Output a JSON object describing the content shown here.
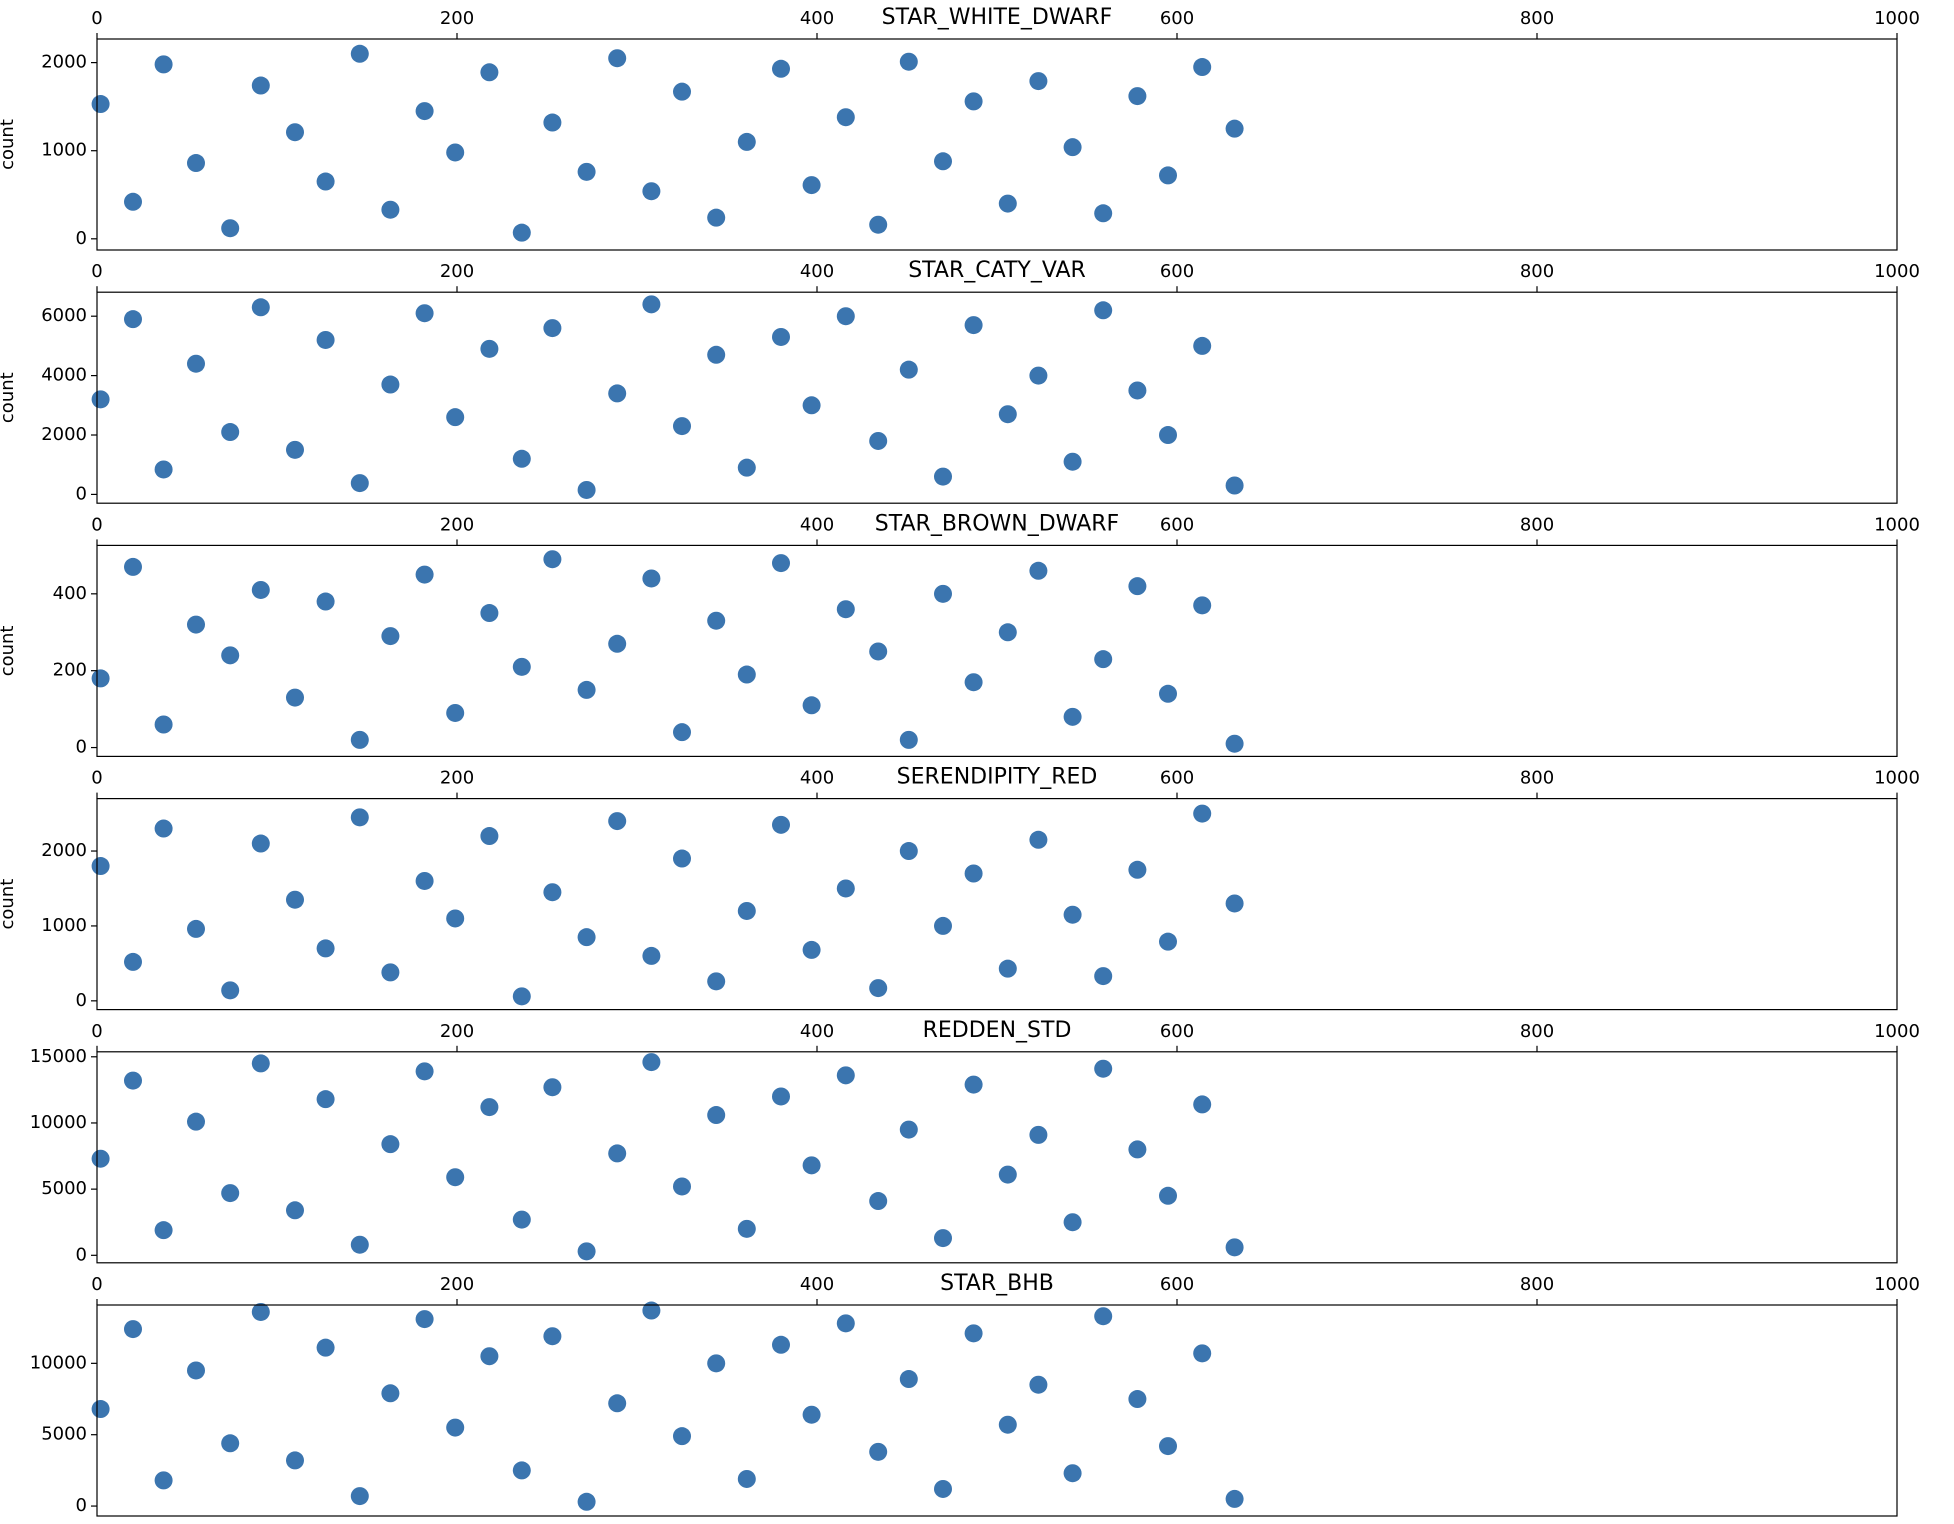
{
  "chart_data": [
    {
      "type": "scatter",
      "title": "STAR_WHITE_DWARF",
      "ylabel": "count",
      "color": "#3b75af",
      "x": [
        2,
        20,
        37,
        55,
        74,
        91,
        110,
        127,
        146,
        163,
        182,
        199,
        218,
        236,
        253,
        272,
        289,
        308,
        325,
        344,
        361,
        380,
        397,
        416,
        434,
        451,
        470,
        487,
        506,
        523,
        542,
        559,
        578,
        595,
        614,
        632
      ],
      "y": [
        1530,
        420,
        1980,
        860,
        120,
        1740,
        1210,
        650,
        2100,
        330,
        1450,
        980,
        1890,
        70,
        1320,
        760,
        2050,
        540,
        1670,
        240,
        1100,
        1930,
        610,
        1380,
        160,
        2010,
        880,
        1560,
        400,
        1790,
        1040,
        290,
        1620,
        720,
        1950,
        1250
      ],
      "xlim": [
        0,
        1000
      ],
      "xticks": [
        0,
        200,
        400,
        600,
        800,
        1000
      ],
      "ylim": [
        -127,
        2268
      ],
      "yticks": [
        0,
        1000,
        2000
      ]
    },
    {
      "type": "scatter",
      "title": "STAR_CATY_VAR",
      "ylabel": "count",
      "color": "#3b75af",
      "x": [
        2,
        20,
        37,
        55,
        74,
        91,
        110,
        127,
        146,
        163,
        182,
        199,
        218,
        236,
        253,
        272,
        289,
        308,
        325,
        344,
        361,
        380,
        397,
        416,
        434,
        451,
        470,
        487,
        506,
        523,
        542,
        559,
        578,
        595,
        614,
        632
      ],
      "y": [
        3200,
        5900,
        840,
        4400,
        2100,
        6300,
        1500,
        5200,
        380,
        3700,
        6100,
        2600,
        4900,
        1200,
        5600,
        150,
        3400,
        6400,
        2300,
        4700,
        900,
        5300,
        3000,
        6000,
        1800,
        4200,
        600,
        5700,
        2700,
        4000,
        1100,
        6200,
        3500,
        2000,
        5000,
        300
      ],
      "xlim": [
        0,
        1000
      ],
      "xticks": [
        0,
        200,
        400,
        600,
        800,
        1000
      ],
      "ylim": [
        -296,
        6808
      ],
      "yticks": [
        0,
        2000,
        4000,
        6000
      ]
    },
    {
      "type": "scatter",
      "title": "STAR_BROWN_DWARF",
      "ylabel": "count",
      "color": "#3b75af",
      "x": [
        2,
        20,
        37,
        55,
        74,
        91,
        110,
        127,
        146,
        163,
        182,
        199,
        218,
        236,
        253,
        272,
        289,
        308,
        325,
        344,
        361,
        380,
        397,
        416,
        434,
        451,
        470,
        487,
        506,
        523,
        542,
        559,
        578,
        595,
        614,
        632
      ],
      "y": [
        180,
        470,
        60,
        320,
        240,
        410,
        130,
        380,
        20,
        290,
        450,
        90,
        350,
        210,
        490,
        150,
        270,
        440,
        40,
        330,
        190,
        480,
        110,
        360,
        250,
        20,
        400,
        170,
        300,
        460,
        80,
        230,
        420,
        140,
        370,
        10
      ],
      "xlim": [
        0,
        1000
      ],
      "xticks": [
        0,
        200,
        400,
        600,
        800,
        1000
      ],
      "ylim": [
        -23,
        526
      ],
      "yticks": [
        0,
        200,
        400
      ]
    },
    {
      "type": "scatter",
      "title": "SERENDIPITY_RED",
      "ylabel": "count",
      "color": "#3b75af",
      "x": [
        2,
        20,
        37,
        55,
        74,
        91,
        110,
        127,
        146,
        163,
        182,
        199,
        218,
        236,
        253,
        272,
        289,
        308,
        325,
        344,
        361,
        380,
        397,
        416,
        434,
        451,
        470,
        487,
        506,
        523,
        542,
        559,
        578,
        595,
        614,
        632
      ],
      "y": [
        1800,
        520,
        2300,
        960,
        140,
        2100,
        1350,
        700,
        2450,
        380,
        1600,
        1100,
        2200,
        60,
        1450,
        850,
        2400,
        600,
        1900,
        260,
        1200,
        2350,
        680,
        1500,
        170,
        2000,
        1000,
        1700,
        430,
        2150,
        1150,
        330,
        1750,
        790,
        2500,
        1300
      ],
      "xlim": [
        0,
        1000
      ],
      "xticks": [
        0,
        200,
        400,
        600,
        800,
        1000
      ],
      "ylim": [
        -117,
        2700
      ],
      "yticks": [
        0,
        1000,
        2000
      ]
    },
    {
      "type": "scatter",
      "title": "REDDEN_STD",
      "color": "#3b75af",
      "x": [
        2,
        20,
        37,
        55,
        74,
        91,
        110,
        127,
        146,
        163,
        182,
        199,
        218,
        236,
        253,
        272,
        289,
        308,
        325,
        344,
        361,
        380,
        397,
        416,
        434,
        451,
        470,
        487,
        506,
        523,
        542,
        559,
        578,
        595,
        614,
        632
      ],
      "y": [
        7300,
        13200,
        1900,
        10100,
        4700,
        14500,
        3400,
        11800,
        800,
        8400,
        13900,
        5900,
        11200,
        2700,
        12700,
        300,
        7700,
        14600,
        5200,
        10600,
        2000,
        12000,
        6800,
        13600,
        4100,
        9500,
        1300,
        12900,
        6100,
        9100,
        2500,
        14100,
        8000,
        4500,
        11400,
        600
      ],
      "xlim": [
        0,
        1000
      ],
      "xticks": [
        0,
        200,
        400,
        600,
        800,
        1000
      ],
      "ylim": [
        -566,
        15377
      ],
      "yticks": [
        0,
        5000,
        10000,
        15000
      ]
    },
    {
      "type": "scatter",
      "title": "STAR_BHB",
      "color": "#3b75af",
      "x": [
        2,
        20,
        37,
        55,
        74,
        91,
        110,
        127,
        146,
        163,
        182,
        199,
        218,
        236,
        253,
        272,
        289,
        308,
        325,
        344,
        361,
        380,
        397,
        416,
        434,
        451,
        470,
        487,
        506,
        523,
        542,
        559,
        578,
        595,
        614,
        632
      ],
      "y": [
        6800,
        12400,
        1800,
        9500,
        4400,
        13600,
        3200,
        11100,
        700,
        7900,
        13100,
        5500,
        10500,
        2500,
        11900,
        300,
        7200,
        13700,
        4900,
        10000,
        1900,
        11300,
        6400,
        12800,
        3800,
        8900,
        1200,
        12100,
        5700,
        8500,
        2300,
        13300,
        7500,
        4200,
        10700,
        500
      ],
      "xlim": [
        0,
        1000
      ],
      "xticks": [
        0,
        200,
        400,
        600,
        800,
        1000
      ],
      "ylim": [
        -696,
        14087
      ],
      "yticks": [
        0,
        5000,
        10000
      ]
    }
  ]
}
